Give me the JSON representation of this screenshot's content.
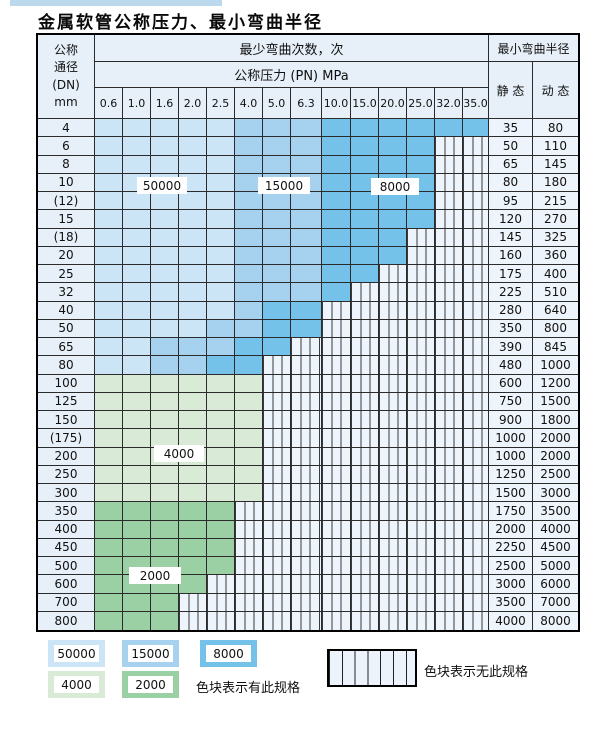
{
  "title": "金属软管公称压力、最小弯曲半径",
  "table": {
    "dn_header_lines": [
      "公称",
      "通径",
      "(DN)",
      "mm"
    ],
    "cycles_header": "最少弯曲次数，次",
    "pressure_header": "公称压力 (PN) MPa",
    "pressure_columns": [
      "0.6",
      "1.0",
      "1.6",
      "2.0",
      "2.5",
      "4.0",
      "5.0",
      "6.3",
      "10.0",
      "15.0",
      "20.0",
      "25.0",
      "32.0",
      "35.0"
    ],
    "radius_header": "最小弯曲半径",
    "static_header": "静 态",
    "dynamic_header": "动 态"
  },
  "chart_data": {
    "type": "heatmap",
    "title": "金属软管公称压力、最小弯曲半径",
    "x_categories_pressure_MPa": [
      "0.6",
      "1.0",
      "1.6",
      "2.0",
      "2.5",
      "4.0",
      "5.0",
      "6.3",
      "10.0",
      "15.0",
      "20.0",
      "25.0",
      "32.0",
      "35.0"
    ],
    "zone_values_cycles": [
      "50000",
      "15000",
      "8000",
      "4000",
      "2000"
    ],
    "hatch_meaning": "无此规格",
    "rows": [
      {
        "dn": "4",
        "bands": [
          [
            "50000",
            5
          ],
          [
            "15000",
            3
          ],
          [
            "8000",
            6
          ]
        ],
        "static": "35",
        "dynamic": "80"
      },
      {
        "dn": "6",
        "bands": [
          [
            "50000",
            5
          ],
          [
            "15000",
            3
          ],
          [
            "8000",
            4
          ]
        ],
        "static": "50",
        "dynamic": "110"
      },
      {
        "dn": "8",
        "bands": [
          [
            "50000",
            5
          ],
          [
            "15000",
            3
          ],
          [
            "8000",
            4
          ]
        ],
        "static": "65",
        "dynamic": "145"
      },
      {
        "dn": "10",
        "bands": [
          [
            "50000",
            5
          ],
          [
            "15000",
            3
          ],
          [
            "8000",
            4
          ]
        ],
        "static": "80",
        "dynamic": "180"
      },
      {
        "dn": "(12)",
        "bands": [
          [
            "50000",
            5
          ],
          [
            "15000",
            3
          ],
          [
            "8000",
            4
          ]
        ],
        "static": "95",
        "dynamic": "215"
      },
      {
        "dn": "15",
        "bands": [
          [
            "50000",
            5
          ],
          [
            "15000",
            3
          ],
          [
            "8000",
            4
          ]
        ],
        "static": "120",
        "dynamic": "270"
      },
      {
        "dn": "(18)",
        "bands": [
          [
            "50000",
            5
          ],
          [
            "15000",
            3
          ],
          [
            "8000",
            3
          ]
        ],
        "static": "145",
        "dynamic": "325"
      },
      {
        "dn": "20",
        "bands": [
          [
            "50000",
            5
          ],
          [
            "15000",
            3
          ],
          [
            "8000",
            3
          ]
        ],
        "static": "160",
        "dynamic": "360"
      },
      {
        "dn": "25",
        "bands": [
          [
            "50000",
            5
          ],
          [
            "15000",
            3
          ],
          [
            "8000",
            2
          ]
        ],
        "static": "175",
        "dynamic": "400"
      },
      {
        "dn": "32",
        "bands": [
          [
            "50000",
            5
          ],
          [
            "15000",
            3
          ],
          [
            "8000",
            1
          ]
        ],
        "static": "225",
        "dynamic": "510"
      },
      {
        "dn": "40",
        "bands": [
          [
            "50000",
            5
          ],
          [
            "15000",
            1
          ],
          [
            "8000",
            2
          ]
        ],
        "static": "280",
        "dynamic": "640"
      },
      {
        "dn": "50",
        "bands": [
          [
            "50000",
            4
          ],
          [
            "15000",
            2
          ],
          [
            "8000",
            2
          ]
        ],
        "static": "350",
        "dynamic": "800"
      },
      {
        "dn": "65",
        "bands": [
          [
            "50000",
            2
          ],
          [
            "15000",
            3
          ],
          [
            "8000",
            2
          ]
        ],
        "static": "390",
        "dynamic": "845"
      },
      {
        "dn": "80",
        "bands": [
          [
            "50000",
            2
          ],
          [
            "15000",
            2
          ],
          [
            "8000",
            2
          ]
        ],
        "static": "480",
        "dynamic": "1000"
      },
      {
        "dn": "100",
        "bands": [
          [
            "4000",
            6
          ]
        ],
        "static": "600",
        "dynamic": "1200"
      },
      {
        "dn": "125",
        "bands": [
          [
            "4000",
            6
          ]
        ],
        "static": "750",
        "dynamic": "1500"
      },
      {
        "dn": "150",
        "bands": [
          [
            "4000",
            6
          ]
        ],
        "static": "900",
        "dynamic": "1800"
      },
      {
        "dn": "(175)",
        "bands": [
          [
            "4000",
            6
          ]
        ],
        "static": "1000",
        "dynamic": "2000"
      },
      {
        "dn": "200",
        "bands": [
          [
            "4000",
            6
          ]
        ],
        "static": "1000",
        "dynamic": "2000"
      },
      {
        "dn": "250",
        "bands": [
          [
            "4000",
            6
          ]
        ],
        "static": "1250",
        "dynamic": "2500"
      },
      {
        "dn": "300",
        "bands": [
          [
            "4000",
            6
          ]
        ],
        "static": "1500",
        "dynamic": "3000"
      },
      {
        "dn": "350",
        "bands": [
          [
            "2000",
            5
          ]
        ],
        "static": "1750",
        "dynamic": "3500"
      },
      {
        "dn": "400",
        "bands": [
          [
            "2000",
            5
          ]
        ],
        "static": "2000",
        "dynamic": "4000"
      },
      {
        "dn": "450",
        "bands": [
          [
            "2000",
            5
          ]
        ],
        "static": "2250",
        "dynamic": "4500"
      },
      {
        "dn": "500",
        "bands": [
          [
            "2000",
            5
          ]
        ],
        "static": "2500",
        "dynamic": "5000"
      },
      {
        "dn": "600",
        "bands": [
          [
            "2000",
            4
          ]
        ],
        "static": "3000",
        "dynamic": "6000"
      },
      {
        "dn": "700",
        "bands": [
          [
            "2000",
            3
          ]
        ],
        "static": "3500",
        "dynamic": "7000"
      },
      {
        "dn": "800",
        "bands": [
          [
            "2000",
            3
          ]
        ],
        "static": "4000",
        "dynamic": "8000"
      }
    ],
    "annotations": [
      "50000",
      "15000",
      "8000",
      "4000",
      "2000"
    ]
  },
  "legend": {
    "items": [
      {
        "label": "50000",
        "color": "#cbe5f6"
      },
      {
        "label": "15000",
        "color": "#a6d2ef"
      },
      {
        "label": "8000",
        "color": "#74c2e9"
      },
      {
        "label": "4000",
        "color": "#d9ebd6"
      },
      {
        "label": "2000",
        "color": "#9bd0a5"
      }
    ],
    "has_spec_text": "色块表示有此规格",
    "no_spec_text": "色块表示无此规格"
  }
}
